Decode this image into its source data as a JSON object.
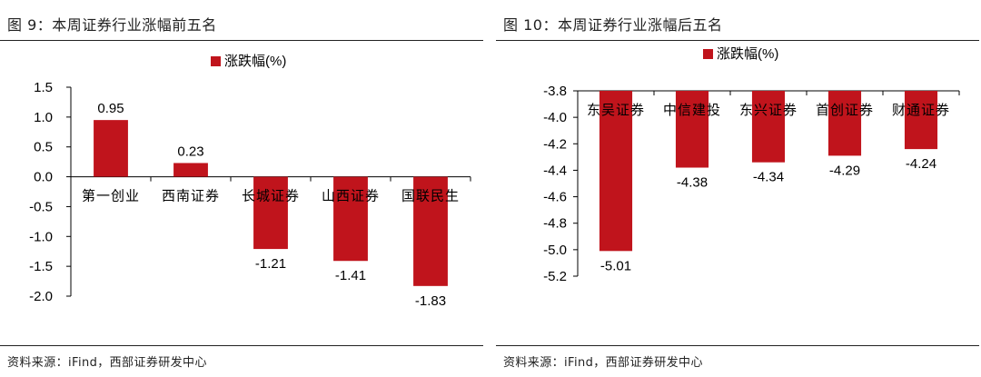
{
  "panels": [
    {
      "figure_title": "图 9：本周证券行业涨幅前五名",
      "source": "资料来源：iFind，西部证券研发中心"
    },
    {
      "figure_title": "图 10：本周证券行业涨幅后五名",
      "source": "资料来源：iFind，西部证券研发中心"
    }
  ],
  "colors": {
    "bar": "#C0141C",
    "axis": "#000000"
  },
  "chart_data": [
    {
      "type": "bar",
      "title": "",
      "legend": [
        "涨跌幅(%)"
      ],
      "legend_position": "top-center",
      "categories": [
        "第一创业",
        "西南证券",
        "长城证券",
        "山西证券",
        "国联民生"
      ],
      "series": [
        {
          "name": "涨跌幅(%)",
          "values": [
            0.95,
            0.23,
            -1.21,
            -1.41,
            -1.83
          ]
        }
      ],
      "data_labels": [
        "0.95",
        "0.23",
        "-1.21",
        "-1.41",
        "-1.83"
      ],
      "ylim": [
        -2.0,
        1.5
      ],
      "yticks": [
        "1.5",
        "1.0",
        "0.5",
        "0.0",
        "-0.5",
        "-1.0",
        "-1.5",
        "-2.0"
      ],
      "grid": false
    },
    {
      "type": "bar",
      "title": "",
      "legend": [
        "涨跌幅(%)"
      ],
      "legend_position": "top-center",
      "categories": [
        "东吴证券",
        "中信建投",
        "东兴证券",
        "首创证券",
        "财通证券"
      ],
      "series": [
        {
          "name": "涨跌幅(%)",
          "values": [
            -5.01,
            -4.38,
            -4.34,
            -4.29,
            -4.24
          ]
        }
      ],
      "data_labels": [
        "-5.01",
        "-4.38",
        "-4.34",
        "-4.29",
        "-4.24"
      ],
      "ylim": [
        -5.2,
        -3.8
      ],
      "yticks": [
        "-3.8",
        "-4.0",
        "-4.2",
        "-4.4",
        "-4.6",
        "-4.8",
        "-5.0",
        "-5.2"
      ],
      "grid": false
    }
  ]
}
